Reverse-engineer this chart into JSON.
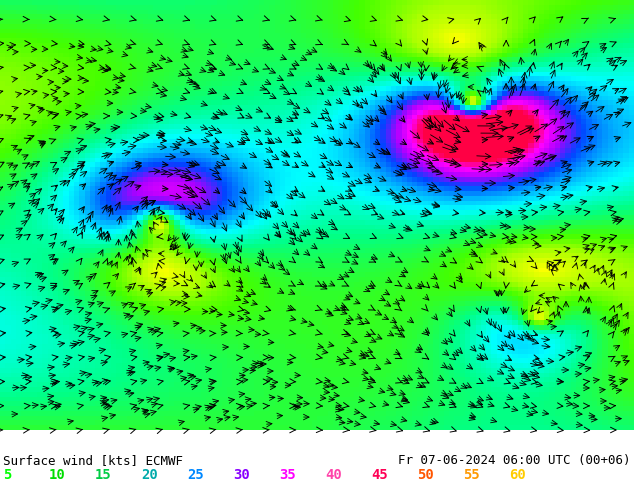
{
  "title_left": "Surface wind [kts] ECMWF",
  "title_right": "Fr 07-06-2024 06:00 UTC (00+06)",
  "legend_values": [
    5,
    10,
    15,
    20,
    25,
    30,
    35,
    40,
    45,
    50,
    55,
    60
  ],
  "legend_colors": [
    "#00ff00",
    "#00dd00",
    "#00cc44",
    "#00aaaa",
    "#0088ff",
    "#8800ff",
    "#ff00ff",
    "#ff44aa",
    "#ff0055",
    "#ff5500",
    "#ff9900",
    "#ffcc00"
  ],
  "bg_colors": {
    "low": "#ffff00",
    "mid_low": "#88ff00",
    "mid": "#00ff00",
    "mid_high": "#00ffaa",
    "high": "#00aaff",
    "very_high": "#0044ff"
  },
  "figsize": [
    6.34,
    4.9
  ],
  "dpi": 100,
  "bottom_bar_color": "#000000",
  "bottom_bg": "#c8c8c8",
  "font_size_legend": 9,
  "font_size_title": 9
}
